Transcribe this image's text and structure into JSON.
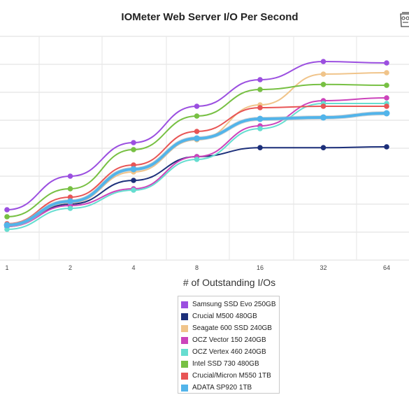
{
  "chart_data": {
    "type": "line",
    "title": "IOMeter Web Server I/O Per Second",
    "xlabel": "# of Outstanding I/Os",
    "ylabel": "",
    "x_scale": "log2",
    "categories": [
      "1",
      "2",
      "4",
      "8",
      "16",
      "32",
      "64"
    ],
    "grid": true,
    "legend_position": "bottom-center",
    "series": [
      {
        "name": "Samsung SSD Evo 250GB",
        "color": "#9b4fe0",
        "values": [
          1.8,
          3.0,
          4.2,
          5.5,
          6.45,
          7.1,
          7.05
        ]
      },
      {
        "name": "Crucial M500 480GB",
        "color": "#1c2f7a",
        "values": [
          1.2,
          2.0,
          2.85,
          3.7,
          4.02,
          4.02,
          4.05
        ]
      },
      {
        "name": "Seagate 600 SSD 240GB",
        "color": "#f0c48a",
        "values": [
          1.25,
          2.05,
          3.15,
          4.3,
          5.55,
          6.65,
          6.7
        ]
      },
      {
        "name": "OCZ Vector 150 240GB",
        "color": "#cc44bb",
        "values": [
          1.2,
          1.95,
          2.55,
          3.7,
          4.8,
          5.7,
          5.8
        ]
      },
      {
        "name": "OCZ Vertex 460 240GB",
        "color": "#66ddd0",
        "values": [
          1.1,
          1.85,
          2.5,
          3.6,
          4.7,
          5.6,
          5.6
        ]
      },
      {
        "name": "Intel SSD 730 480GB",
        "color": "#77c043",
        "values": [
          1.55,
          2.55,
          3.95,
          5.15,
          6.1,
          6.28,
          6.25
        ]
      },
      {
        "name": "Crucial/Micron M550 1TB",
        "color": "#e85555",
        "values": [
          1.3,
          2.25,
          3.4,
          4.6,
          5.45,
          5.5,
          5.5
        ]
      },
      {
        "name": "ADATA SP920 1TB",
        "color": "#52b4ea",
        "values": [
          1.25,
          2.1,
          3.25,
          4.35,
          5.05,
          5.1,
          5.25
        ]
      }
    ]
  }
}
